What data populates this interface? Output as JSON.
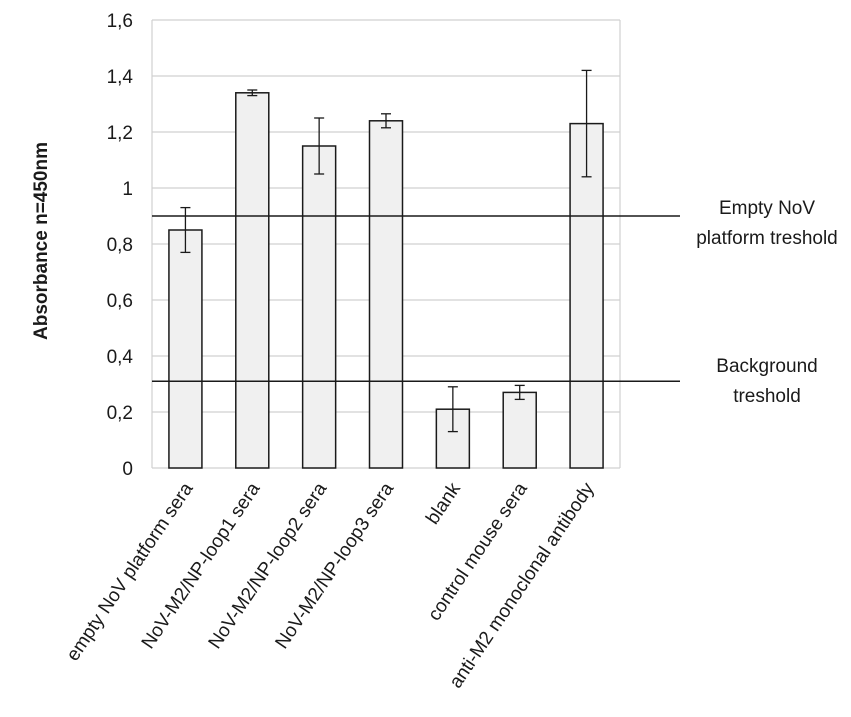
{
  "chart_data": {
    "type": "bar",
    "ylabel": "Absorbance n=450nm",
    "xlabel": "",
    "title": "",
    "ylim": [
      0,
      1.6
    ],
    "yticks": [
      "0",
      "0,2",
      "0,4",
      "0,6",
      "0,8",
      "1",
      "1,2",
      "1,4",
      "1,6"
    ],
    "grid": true,
    "categories": [
      "empty NoV platform sera",
      "NoV-M2/NP-loop1 sera",
      "NoV-M2/NP-loop2 sera",
      "NoV-M2/NP-loop3 sera",
      "blank",
      "control mouse sera",
      "anti-M2 monoclonal antibody"
    ],
    "values": [
      0.85,
      1.34,
      1.15,
      1.24,
      0.21,
      0.27,
      1.23
    ],
    "errors": [
      0.08,
      0.01,
      0.1,
      0.025,
      0.08,
      0.025,
      0.19
    ],
    "thresholds": [
      {
        "value": 0.9,
        "label_lines": [
          "Empty NoV",
          "platform treshold"
        ]
      },
      {
        "value": 0.31,
        "label_lines": [
          "Background",
          "treshold"
        ]
      }
    ],
    "colors": {
      "bar_fill": "#f0f0f0",
      "bar_stroke": "#1a1a1a",
      "grid": "#d0d0d0",
      "threshold": "#1a1a1a"
    }
  }
}
